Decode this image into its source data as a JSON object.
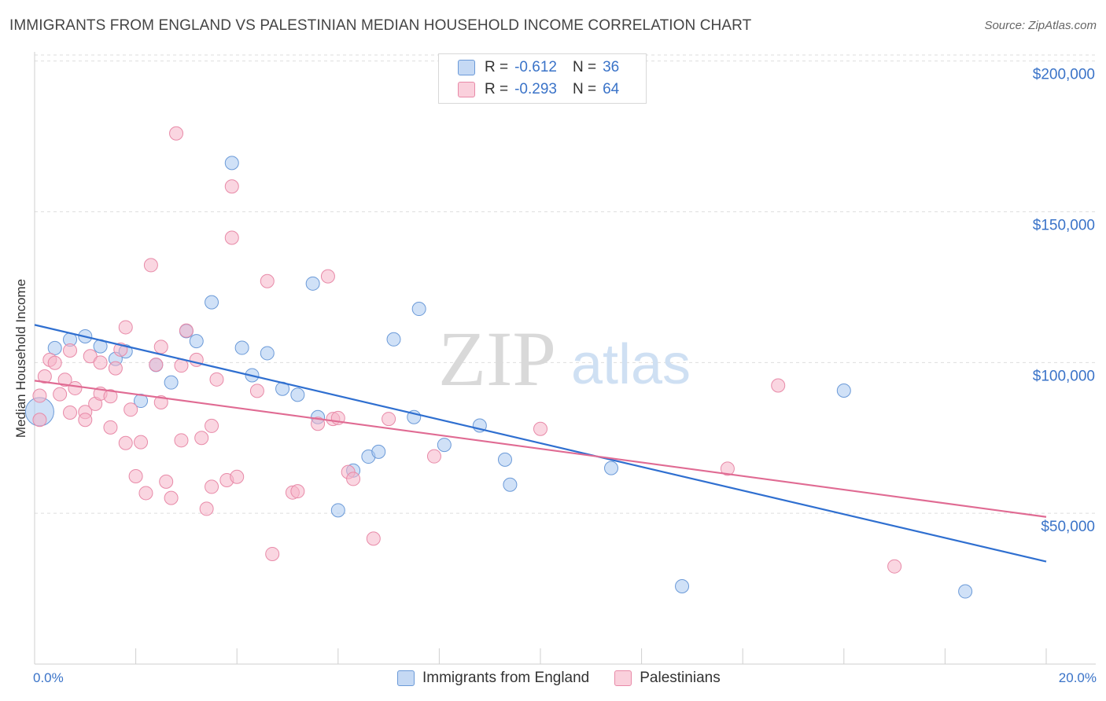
{
  "title": "IMMIGRANTS FROM ENGLAND VS PALESTINIAN MEDIAN HOUSEHOLD INCOME CORRELATION CHART",
  "source": "Source: ZipAtlas.com",
  "watermark": {
    "zip": "ZIP",
    "atlas": "atlas"
  },
  "legend_top": {
    "rows": [
      {
        "r_label": "R =",
        "r_value": "-0.612",
        "n_label": "N =",
        "n_value": "36",
        "color": "#a9c8f0"
      },
      {
        "r_label": "R =",
        "r_value": "-0.293",
        "n_label": "N =",
        "n_value": "64",
        "color": "#f5b5c8"
      }
    ]
  },
  "bottom_legend": [
    {
      "label": "Immigrants from England",
      "color": "#a9c8f0"
    },
    {
      "label": "Palestinians",
      "color": "#f5b5c8"
    }
  ],
  "chart_data": {
    "type": "scatter",
    "title": "IMMIGRANTS FROM ENGLAND VS PALESTINIAN MEDIAN HOUSEHOLD INCOME CORRELATION CHART",
    "xlabel": "",
    "ylabel": "Median Household Income",
    "x_tick_labels": [
      "0.0%",
      "20.0%"
    ],
    "y_tick_labels": [
      "$50,000",
      "$100,000",
      "$150,000",
      "$200,000"
    ],
    "y_ticks": [
      50000,
      100000,
      150000,
      200000
    ],
    "xlim": [
      0,
      20
    ],
    "ylim": [
      0,
      202000
    ],
    "grid": true,
    "legend_position": "top-center",
    "series": [
      {
        "name": "Immigrants from England",
        "color": "#a9c8f0",
        "stroke": "#6b9ad8",
        "trend": {
          "x": [
            0,
            20
          ],
          "y": [
            112500,
            34000
          ],
          "color": "#2f6fd0"
        },
        "points": [
          [
            0.1,
            83700
          ],
          [
            0.4,
            104800
          ],
          [
            0.7,
            107600
          ],
          [
            1.0,
            108700
          ],
          [
            1.3,
            105400
          ],
          [
            1.6,
            101200
          ],
          [
            1.8,
            103700
          ],
          [
            2.1,
            87300
          ],
          [
            2.4,
            99200
          ],
          [
            2.7,
            93400
          ],
          [
            3.0,
            110400
          ],
          [
            3.2,
            107100
          ],
          [
            3.5,
            120000
          ],
          [
            3.9,
            166200
          ],
          [
            4.1,
            104900
          ],
          [
            4.3,
            95800
          ],
          [
            4.6,
            103100
          ],
          [
            4.9,
            91300
          ],
          [
            5.2,
            89300
          ],
          [
            5.5,
            126200
          ],
          [
            5.6,
            81900
          ],
          [
            6.0,
            51000
          ],
          [
            6.3,
            64200
          ],
          [
            6.6,
            68800
          ],
          [
            6.8,
            70400
          ],
          [
            7.1,
            107700
          ],
          [
            7.5,
            81900
          ],
          [
            7.6,
            117800
          ],
          [
            8.1,
            72700
          ],
          [
            8.8,
            79100
          ],
          [
            9.3,
            67800
          ],
          [
            9.4,
            59500
          ],
          [
            11.4,
            65000
          ],
          [
            12.8,
            25800
          ],
          [
            16.0,
            90700
          ],
          [
            18.4,
            24100
          ]
        ]
      },
      {
        "name": "Palestinians",
        "color": "#f5b5c8",
        "stroke": "#e88aa8",
        "trend": {
          "x": [
            0,
            20
          ],
          "y": [
            94000,
            48800
          ],
          "color": "#e06b93"
        },
        "points": [
          [
            0.1,
            81000
          ],
          [
            0.1,
            89000
          ],
          [
            0.2,
            95400
          ],
          [
            0.3,
            100900
          ],
          [
            0.4,
            99900
          ],
          [
            0.5,
            89500
          ],
          [
            0.6,
            94300
          ],
          [
            0.7,
            104000
          ],
          [
            0.7,
            83400
          ],
          [
            0.8,
            91500
          ],
          [
            1.0,
            83600
          ],
          [
            1.0,
            81000
          ],
          [
            1.1,
            102100
          ],
          [
            1.2,
            86300
          ],
          [
            1.3,
            100000
          ],
          [
            1.3,
            89700
          ],
          [
            1.5,
            88800
          ],
          [
            1.5,
            78500
          ],
          [
            1.6,
            98100
          ],
          [
            1.7,
            104300
          ],
          [
            1.8,
            111700
          ],
          [
            1.8,
            73300
          ],
          [
            1.9,
            84400
          ],
          [
            2.0,
            62300
          ],
          [
            2.1,
            73600
          ],
          [
            2.2,
            56700
          ],
          [
            2.3,
            132300
          ],
          [
            2.4,
            99300
          ],
          [
            2.5,
            86800
          ],
          [
            2.5,
            105200
          ],
          [
            2.6,
            60500
          ],
          [
            2.7,
            55100
          ],
          [
            2.8,
            176000
          ],
          [
            2.9,
            99000
          ],
          [
            2.9,
            74200
          ],
          [
            3.0,
            110600
          ],
          [
            3.2,
            100900
          ],
          [
            3.3,
            75000
          ],
          [
            3.4,
            51500
          ],
          [
            3.5,
            79000
          ],
          [
            3.5,
            58800
          ],
          [
            3.6,
            94400
          ],
          [
            3.8,
            61000
          ],
          [
            3.9,
            158400
          ],
          [
            3.9,
            141400
          ],
          [
            4.0,
            62100
          ],
          [
            4.4,
            90600
          ],
          [
            4.6,
            127000
          ],
          [
            4.7,
            36500
          ],
          [
            5.1,
            56900
          ],
          [
            5.2,
            57300
          ],
          [
            5.6,
            79700
          ],
          [
            5.8,
            128600
          ],
          [
            5.9,
            81300
          ],
          [
            6.0,
            81600
          ],
          [
            6.2,
            63700
          ],
          [
            6.3,
            61400
          ],
          [
            6.7,
            41600
          ],
          [
            7.0,
            81300
          ],
          [
            7.9,
            68900
          ],
          [
            10.0,
            78000
          ],
          [
            13.7,
            64800
          ],
          [
            14.7,
            92400
          ],
          [
            17.0,
            32400
          ]
        ]
      }
    ]
  }
}
